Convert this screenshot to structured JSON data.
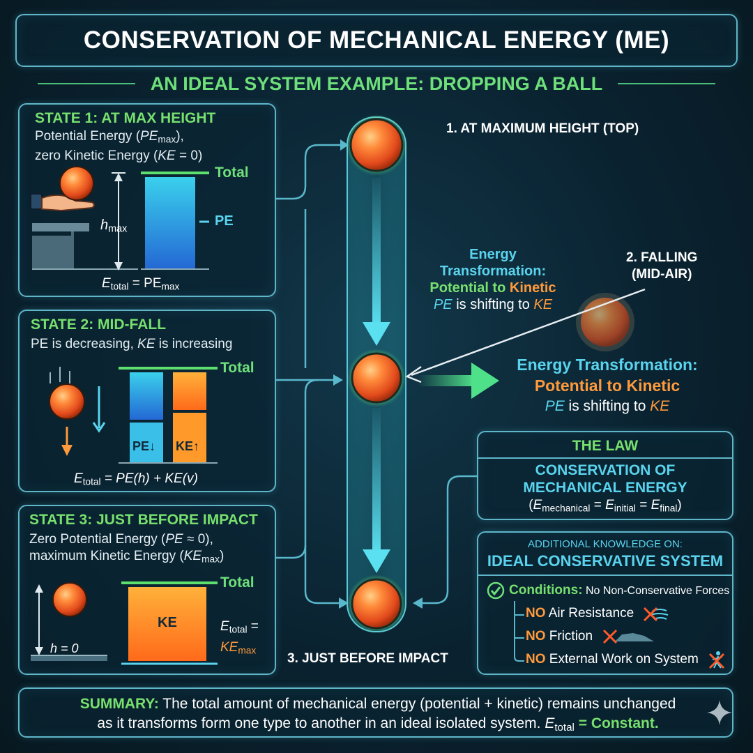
{
  "title": "CONSERVATION OF MECHANICAL ENERGY (ME)",
  "subtitle": "AN IDEAL SYSTEM EXAMPLE: DROPPING A BALL",
  "colors": {
    "background": "#0a2230",
    "panel_border": "#5fb6c9",
    "green": "#78e06e",
    "orange": "#ff9a3c",
    "cyan": "#5ad4ee",
    "pe_bar": "#2a9de0",
    "ke_bar": "#ff8a2a"
  },
  "states": {
    "state1": {
      "title": "STATE 1: AT MAX HEIGHT",
      "desc_line1_pre": "Potential Energy (",
      "desc_line1_var": "PE",
      "desc_line1_sub": "max",
      "desc_line1_post": "),",
      "desc_line2_pre": "zero Kinetic Energy (",
      "desc_line2_var": "KE",
      "desc_line2_post": " = 0)",
      "height_label": "h",
      "height_sub": "max",
      "total_label": "Total",
      "pe_label": "PE",
      "equation_lhs": "E",
      "equation_lhs_sub": "total",
      "equation_rhs": " = PE",
      "equation_rhs_sub": "max",
      "pe_fraction": 1.0,
      "ke_fraction": 0.0
    },
    "state2": {
      "title": "STATE 2: MID-FALL",
      "desc_pre": "PE is decreasing, ",
      "desc_var": "KE",
      "desc_post": " is increasing",
      "total_label": "Total",
      "pe_label": "PE↓",
      "ke_label": "KE↑",
      "equation_lhs": "E",
      "equation_lhs_sub": "total",
      "equation_rhs": " = PE(h) + KE(v)",
      "pe_fraction": 0.5,
      "ke_fraction": 0.5
    },
    "state3": {
      "title": "STATE 3: JUST BEFORE IMPACT",
      "desc_line1_pre": "Zero Potential Energy (",
      "desc_line1_var": "PE",
      "desc_line1_post": " ≈ 0),",
      "desc_line2_pre": "maximum Kinetic Energy (",
      "desc_line2_var": "KE",
      "desc_line2_sub": "max",
      "desc_line2_post": ")",
      "height_label": "h = 0",
      "total_label": "Total",
      "ke_label": "KE",
      "equation_lhs": "E",
      "equation_lhs_sub": "total",
      "equation_eq": " =",
      "equation_rhs": "KE",
      "equation_rhs_sub": "max",
      "pe_fraction": 0.0,
      "ke_fraction": 1.0
    }
  },
  "center": {
    "label_top": "1. AT MAXIMUM HEIGHT (TOP)",
    "label_falling_1": "2. FALLING",
    "label_falling_2": "(MID-AIR)",
    "label_bottom": "3. JUST BEFORE IMPACT",
    "transform_small": {
      "line1": "Energy",
      "line2": "Transformation:",
      "line3_a": "Potential to ",
      "line3_b": "Kinetic",
      "line4_a": "PE",
      "line4_b": " is shifting to ",
      "line4_c": "KE"
    },
    "transform_large": {
      "line1": "Energy Transformation:",
      "line2": "Potential to Kinetic",
      "line3_a": "PE",
      "line3_b": " is shifting to ",
      "line3_c": "KE"
    }
  },
  "law": {
    "heading": "THE LAW",
    "title_line1": "CONSERVATION OF",
    "title_line2": "MECHANICAL ENERGY",
    "eq_open": "(",
    "eq_e1": "E",
    "eq_e1_sub": "mechanical",
    "eq_eq1": " = ",
    "eq_e2": "E",
    "eq_e2_sub": "initial",
    "eq_eq2": " = ",
    "eq_e3": "E",
    "eq_e3_sub": "final",
    "eq_close": ")"
  },
  "knowledge": {
    "heading_small": "ADDITIONAL KNOWLEDGE ON:",
    "heading": "IDEAL CONSERVATIVE SYSTEM",
    "conditions_label": "Conditions:",
    "conditions_text": " No Non-Conservative Forces",
    "items": [
      {
        "no": "NO",
        "text": " Air Resistance"
      },
      {
        "no": "NO",
        "text": " Friction"
      },
      {
        "no": "NO",
        "text": " External Work on System"
      }
    ]
  },
  "summary": {
    "label": "SUMMARY:",
    "text1": " The total amount of mechanical energy (potential + kinetic) remains unchanged",
    "text2": "as it transforms form one type to another in an ideal isolated system. ",
    "eq_e": "E",
    "eq_sub": "total",
    "eq_end": " = Constant."
  }
}
